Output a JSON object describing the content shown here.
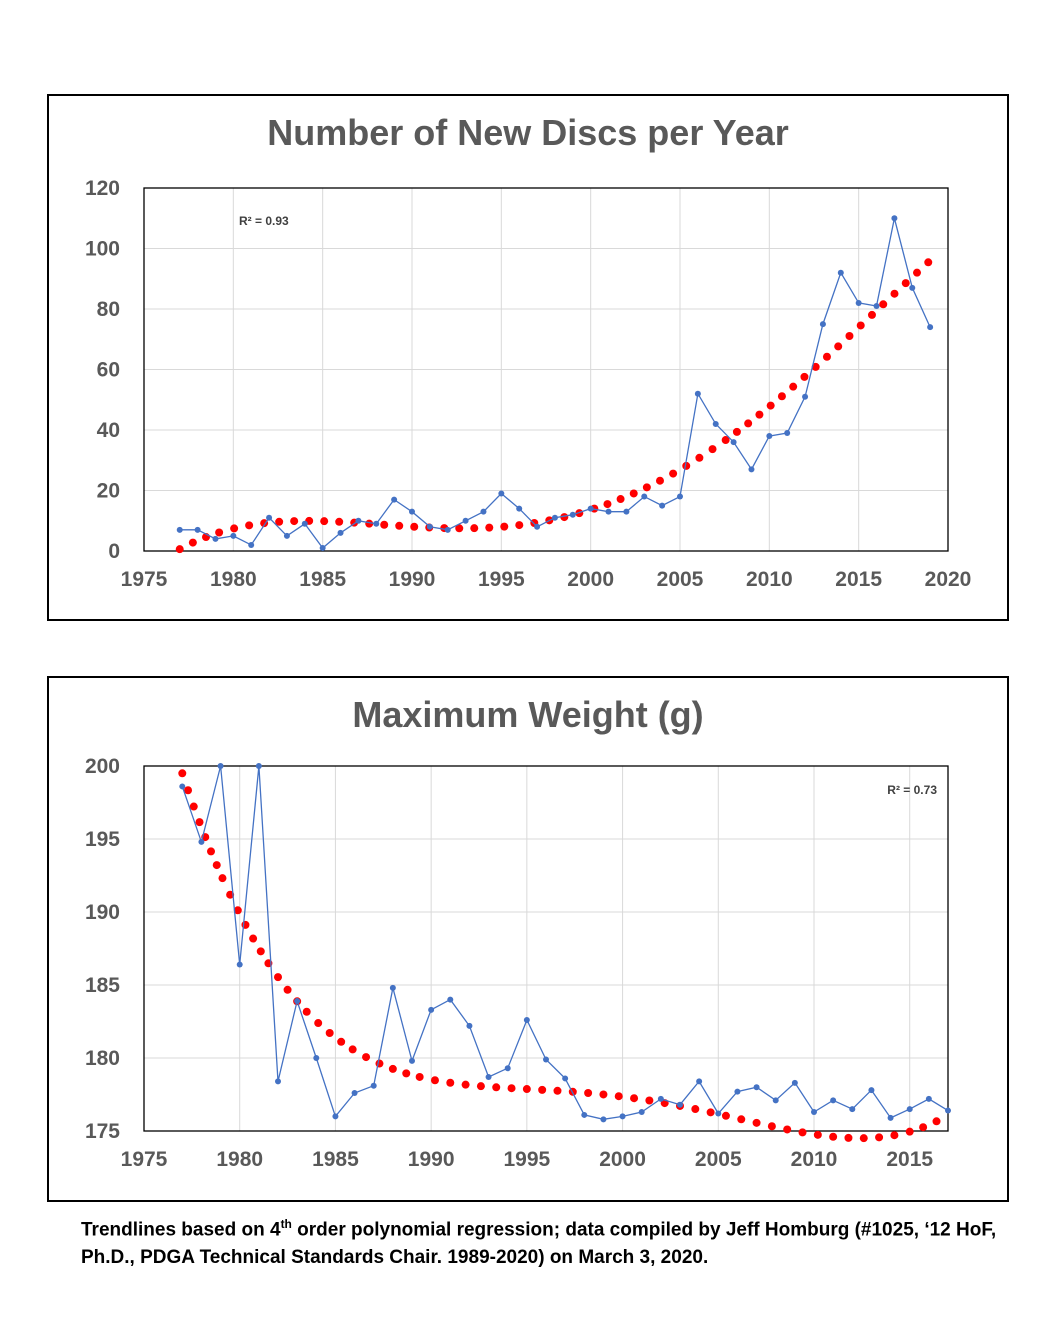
{
  "footnote": {
    "part1": "Trendlines based on 4",
    "sup": "th",
    "part2": " order polynomial regression; data compiled by Jeff Homburg (#1025, ‘12 HoF, Ph.D., PDGA Technical Standards Chair. 1989-2020)  on March 3, 2020."
  },
  "chart_data": [
    {
      "type": "line",
      "title": "Number of New Discs per Year",
      "xlabel": "",
      "ylabel": "",
      "xlim": [
        1975,
        2020
      ],
      "ylim": [
        0,
        120
      ],
      "xticks": [
        1975,
        1980,
        1985,
        1990,
        1995,
        2000,
        2005,
        2010,
        2015,
        2020
      ],
      "yticks": [
        0,
        20,
        40,
        60,
        80,
        100,
        120
      ],
      "grid": true,
      "annotation": "R² = 0.93",
      "data_color": "#4472C4",
      "trend_color": "#FF0000",
      "x": [
        1977,
        1978,
        1979,
        1980,
        1981,
        1982,
        1983,
        1984,
        1985,
        1986,
        1987,
        1988,
        1989,
        1990,
        1991,
        1992,
        1993,
        1994,
        1995,
        1996,
        1997,
        1998,
        1999,
        2000,
        2001,
        2002,
        2003,
        2004,
        2005,
        2006,
        2007,
        2008,
        2009,
        2010,
        2011,
        2012,
        2013,
        2014,
        2015,
        2016,
        2017,
        2018,
        2019
      ],
      "y": [
        7,
        7,
        4,
        5,
        2,
        11,
        5,
        9,
        1,
        6,
        10,
        9,
        17,
        13,
        8,
        7,
        10,
        13,
        19,
        14,
        8,
        11,
        12,
        14,
        13,
        13,
        18,
        15,
        18,
        52,
        42,
        36,
        27,
        38,
        39,
        51,
        75,
        92,
        82,
        81,
        110,
        87,
        74
      ],
      "trend_x": [
        1977,
        2019
      ],
      "trend_y": [
        0.6,
        96
      ]
    },
    {
      "type": "line",
      "title": "Maximum Weight (g)",
      "xlabel": "",
      "ylabel": "",
      "xlim": [
        1975,
        2017
      ],
      "ylim": [
        175,
        200
      ],
      "xticks": [
        1975,
        1980,
        1985,
        1990,
        1995,
        2000,
        2005,
        2010,
        2015
      ],
      "yticks": [
        175,
        180,
        185,
        190,
        195,
        200
      ],
      "grid": true,
      "annotation": "R² = 0.73",
      "data_color": "#4472C4",
      "trend_color": "#FF0000",
      "x": [
        1977,
        1978,
        1979,
        1980,
        1981,
        1982,
        1983,
        1984,
        1985,
        1986,
        1987,
        1988,
        1989,
        1990,
        1991,
        1992,
        1993,
        1994,
        1995,
        1996,
        1997,
        1998,
        1999,
        2000,
        2001,
        2002,
        2003,
        2004,
        2005,
        2006,
        2007,
        2008,
        2009,
        2010,
        2011,
        2012,
        2013,
        2014,
        2015,
        2016,
        2017
      ],
      "y": [
        198.6,
        194.8,
        200,
        186.4,
        200,
        178.4,
        183.9,
        180,
        176,
        177.6,
        178.1,
        184.8,
        179.8,
        183.3,
        184,
        182.2,
        178.7,
        179.3,
        182.6,
        179.9,
        178.6,
        176.1,
        175.8,
        176,
        176.3,
        177.2,
        176.8,
        178.4,
        176.2,
        177.7,
        178,
        177.1,
        178.3,
        176.3,
        177.1,
        176.5,
        177.8,
        175.9,
        176.5,
        177.2,
        176.4
      ],
      "trend_x": [
        1977,
        2017
      ],
      "trend_y": [
        199.5,
        176.1
      ]
    }
  ]
}
